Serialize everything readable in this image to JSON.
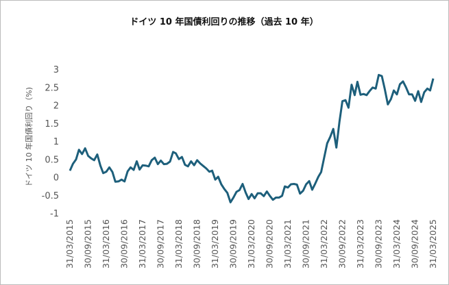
{
  "chart_data": {
    "type": "line",
    "title": "ドイツ 10 年国債利回りの推移（過去 10 年）",
    "y_label": "ドイツ 10 年国債利回り（%)",
    "x": [
      "31/03/2015",
      "30/04/2015",
      "31/05/2015",
      "30/06/2015",
      "31/07/2015",
      "31/08/2015",
      "30/09/2015",
      "31/10/2015",
      "30/11/2015",
      "31/12/2015",
      "31/01/2016",
      "29/02/2016",
      "31/03/2016",
      "30/04/2016",
      "31/05/2016",
      "30/06/2016",
      "31/07/2016",
      "31/08/2016",
      "30/09/2016",
      "31/10/2016",
      "30/11/2016",
      "31/12/2016",
      "31/01/2017",
      "28/02/2017",
      "31/03/2017",
      "30/04/2017",
      "31/05/2017",
      "30/06/2017",
      "31/07/2017",
      "31/08/2017",
      "30/09/2017",
      "31/10/2017",
      "30/11/2017",
      "31/12/2017",
      "31/01/2018",
      "28/02/2018",
      "31/03/2018",
      "30/04/2018",
      "31/05/2018",
      "30/06/2018",
      "31/07/2018",
      "31/08/2018",
      "30/09/2018",
      "31/10/2018",
      "30/11/2018",
      "31/12/2018",
      "31/01/2019",
      "28/02/2019",
      "31/03/2019",
      "30/04/2019",
      "31/05/2019",
      "30/06/2019",
      "31/07/2019",
      "31/08/2019",
      "30/09/2019",
      "31/10/2019",
      "30/11/2019",
      "31/12/2019",
      "31/01/2020",
      "29/02/2020",
      "31/03/2020",
      "30/04/2020",
      "31/05/2020",
      "30/06/2020",
      "31/07/2020",
      "31/08/2020",
      "30/09/2020",
      "31/10/2020",
      "30/11/2020",
      "31/12/2020",
      "31/01/2021",
      "28/02/2021",
      "31/03/2021",
      "30/04/2021",
      "31/05/2021",
      "30/06/2021",
      "31/07/2021",
      "31/08/2021",
      "30/09/2021",
      "31/10/2021",
      "30/11/2021",
      "31/12/2021",
      "31/01/2022",
      "28/02/2022",
      "31/03/2022",
      "30/04/2022",
      "31/05/2022",
      "30/06/2022",
      "31/07/2022",
      "31/08/2022",
      "30/09/2022",
      "31/10/2022",
      "30/11/2022",
      "31/12/2022",
      "31/01/2023",
      "28/02/2023",
      "31/03/2023",
      "30/04/2023",
      "31/05/2023",
      "30/06/2023",
      "31/07/2023",
      "31/08/2023",
      "30/09/2023",
      "31/10/2023",
      "30/11/2023",
      "31/12/2023",
      "31/01/2024",
      "29/02/2024",
      "31/03/2024",
      "30/04/2024",
      "31/05/2024",
      "30/06/2024",
      "31/07/2024",
      "31/08/2024",
      "30/09/2024",
      "31/10/2024",
      "30/11/2024",
      "31/12/2024",
      "31/01/2025",
      "28/02/2025",
      "31/03/2025"
    ],
    "series": [
      {
        "color": "#1d5f7b",
        "values": [
          0.18,
          0.37,
          0.49,
          0.76,
          0.64,
          0.8,
          0.59,
          0.52,
          0.47,
          0.63,
          0.32,
          0.11,
          0.15,
          0.27,
          0.14,
          -0.13,
          -0.12,
          -0.07,
          -0.12,
          0.16,
          0.27,
          0.2,
          0.44,
          0.21,
          0.33,
          0.32,
          0.3,
          0.47,
          0.54,
          0.36,
          0.46,
          0.36,
          0.37,
          0.43,
          0.7,
          0.66,
          0.5,
          0.56,
          0.34,
          0.3,
          0.44,
          0.33,
          0.47,
          0.38,
          0.31,
          0.24,
          0.15,
          0.18,
          -0.07,
          0.01,
          -0.2,
          -0.33,
          -0.44,
          -0.7,
          -0.57,
          -0.41,
          -0.36,
          -0.19,
          -0.43,
          -0.61,
          -0.47,
          -0.59,
          -0.45,
          -0.45,
          -0.53,
          -0.4,
          -0.52,
          -0.63,
          -0.57,
          -0.57,
          -0.52,
          -0.26,
          -0.29,
          -0.2,
          -0.19,
          -0.21,
          -0.46,
          -0.38,
          -0.2,
          -0.11,
          -0.35,
          -0.18,
          0.01,
          0.14,
          0.55,
          0.94,
          1.12,
          1.34,
          0.82,
          1.54,
          2.11,
          2.14,
          1.93,
          2.57,
          2.28,
          2.65,
          2.29,
          2.31,
          2.28,
          2.39,
          2.49,
          2.46,
          2.84,
          2.81,
          2.45,
          2.02,
          2.17,
          2.41,
          2.3,
          2.58,
          2.66,
          2.5,
          2.3,
          2.3,
          2.12,
          2.39,
          2.09,
          2.36,
          2.46,
          2.41,
          2.74
        ]
      }
    ],
    "xticks": [
      "31/03/2015",
      "30/09/2015",
      "31/03/2016",
      "30/09/2016",
      "31/03/2017",
      "30/09/2017",
      "31/03/2018",
      "30/09/2018",
      "31/03/2019",
      "30/09/2019",
      "31/03/2020",
      "30/09/2020",
      "31/03/2021",
      "30/09/2021",
      "31/03/2022",
      "30/09/2022",
      "31/03/2023",
      "30/09/2023",
      "31/03/2024",
      "30/09/2024",
      "31/03/2025"
    ],
    "ylim": [
      -1,
      3
    ],
    "yticks": [
      -1,
      -0.5,
      0,
      0.5,
      1,
      1.5,
      2,
      2.5,
      3
    ],
    "grid": false
  }
}
